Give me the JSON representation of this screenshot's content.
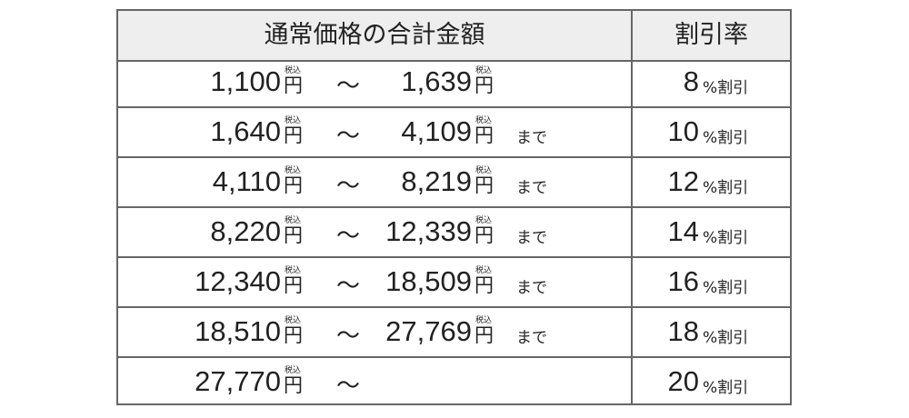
{
  "header": {
    "range_label": "通常価格の合計金額",
    "rate_label": "割引率"
  },
  "labels": {
    "yen": "円",
    "tax": "税込",
    "tilde": "～",
    "until": "まで",
    "percent_off": "%割引"
  },
  "rows": [
    {
      "from": "1,100",
      "to": "1,639",
      "until": "",
      "rate": "8"
    },
    {
      "from": "1,640",
      "to": "4,109",
      "until": "まで",
      "rate": "10"
    },
    {
      "from": "4,110",
      "to": "8,219",
      "until": "まで",
      "rate": "12"
    },
    {
      "from": "8,220",
      "to": "12,339",
      "until": "まで",
      "rate": "14"
    },
    {
      "from": "12,340",
      "to": "18,509",
      "until": "まで",
      "rate": "16"
    },
    {
      "from": "18,510",
      "to": "27,769",
      "until": "まで",
      "rate": "18"
    },
    {
      "from": "27,770",
      "to": "",
      "until": "",
      "rate": "20"
    }
  ]
}
